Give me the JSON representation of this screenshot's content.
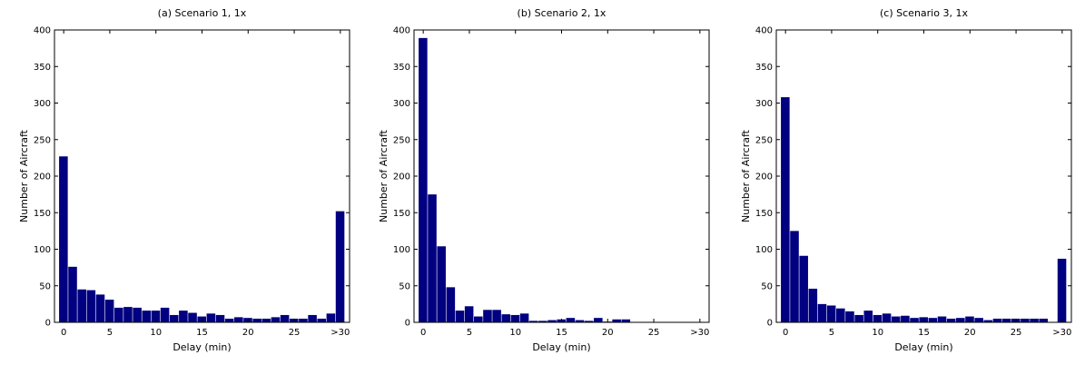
{
  "chart_data": [
    {
      "type": "bar",
      "title": "(a) Scenario 1, 1x",
      "xlabel": "Delay (min)",
      "ylabel": "Number of Aircraft",
      "xticks": [
        "0",
        "5",
        "10",
        "15",
        "20",
        "25",
        ">30"
      ],
      "yticks": [
        "0",
        "50",
        "100",
        "150",
        "200",
        "250",
        "300",
        "350",
        "400"
      ],
      "ylim": [
        0,
        400
      ],
      "grid": false,
      "bar_color": "#000080",
      "values": [
        227,
        76,
        45,
        44,
        38,
        31,
        20,
        21,
        20,
        16,
        16,
        20,
        10,
        16,
        13,
        8,
        12,
        10,
        5,
        7,
        6,
        5,
        5,
        7,
        10,
        5,
        5,
        10,
        5,
        12,
        152
      ]
    },
    {
      "type": "bar",
      "title": "(b) Scenario 2, 1x",
      "xlabel": "Delay (min)",
      "ylabel": "Number of Aircraft",
      "xticks": [
        "0",
        "5",
        "10",
        "15",
        "20",
        "25",
        ">30"
      ],
      "yticks": [
        "0",
        "50",
        "100",
        "150",
        "200",
        "250",
        "300",
        "350",
        "400"
      ],
      "ylim": [
        0,
        400
      ],
      "grid": false,
      "bar_color": "#000080",
      "values": [
        389,
        175,
        104,
        48,
        16,
        22,
        8,
        17,
        17,
        11,
        10,
        12,
        2,
        2,
        3,
        4,
        6,
        3,
        2,
        6,
        1,
        4,
        4,
        0,
        0,
        0,
        0,
        0,
        0,
        0,
        0
      ]
    },
    {
      "type": "bar",
      "title": "(c) Scenario 3, 1x",
      "xlabel": "Delay (min)",
      "ylabel": "Number of Aircraft",
      "xticks": [
        "0",
        "5",
        "10",
        "15",
        "20",
        "25",
        ">30"
      ],
      "yticks": [
        "0",
        "50",
        "100",
        "150",
        "200",
        "250",
        "300",
        "350",
        "400"
      ],
      "ylim": [
        0,
        400
      ],
      "grid": false,
      "bar_color": "#000080",
      "values": [
        308,
        125,
        91,
        46,
        25,
        23,
        19,
        15,
        10,
        16,
        10,
        12,
        8,
        9,
        6,
        7,
        6,
        8,
        5,
        6,
        8,
        6,
        3,
        5,
        5,
        5,
        5,
        5,
        5,
        0,
        87
      ]
    }
  ]
}
